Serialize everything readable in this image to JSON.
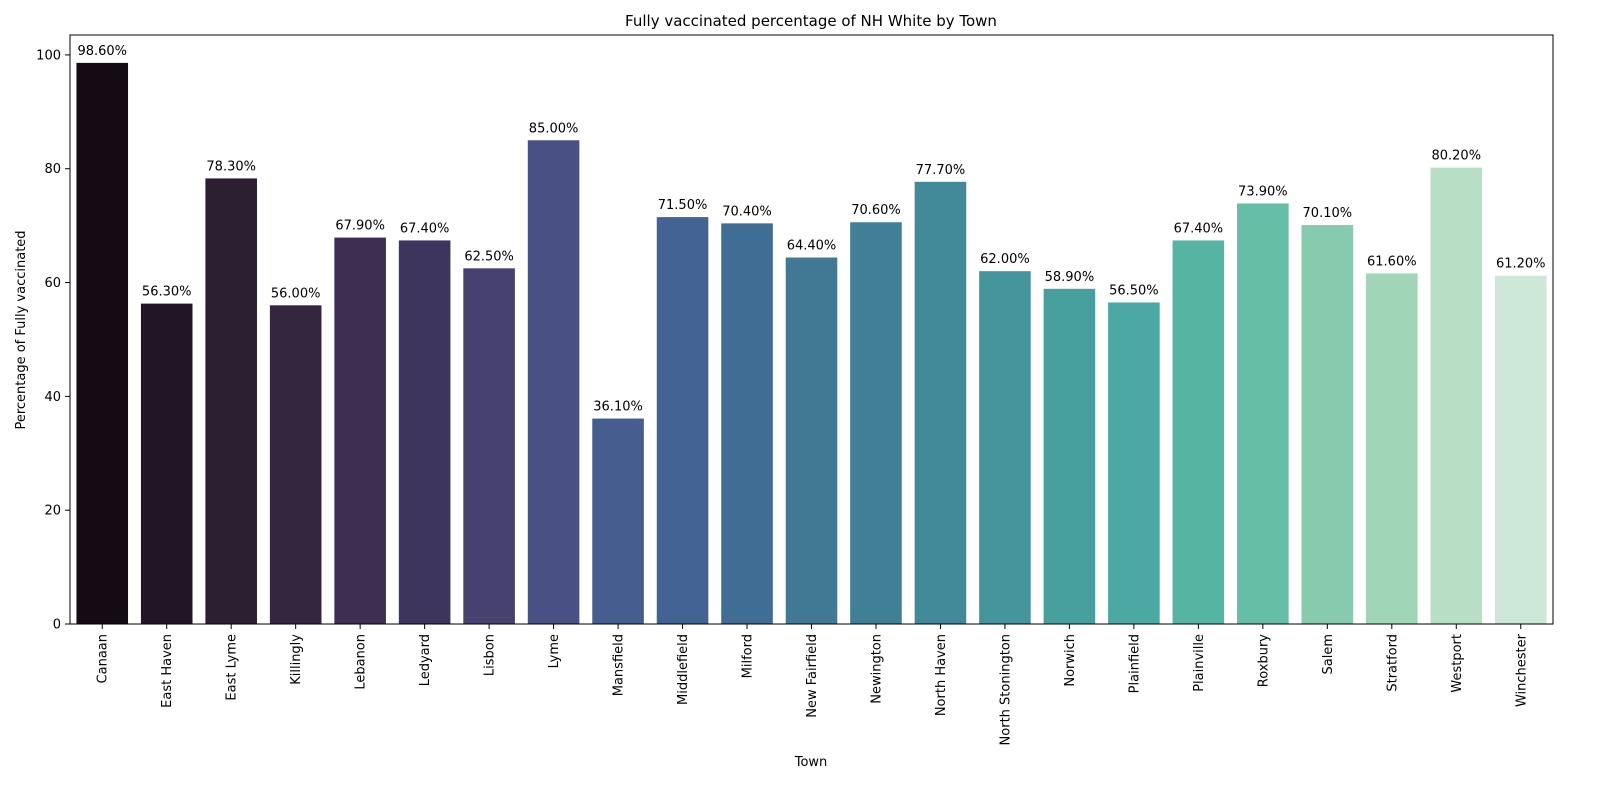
{
  "chart_data": {
    "type": "bar",
    "title": "Fully vaccinated percentage of NH White by Town",
    "xlabel": "Town",
    "ylabel": "Percentage of Fully vaccinated",
    "ylim": [
      0,
      103.5
    ],
    "yticks": [
      0,
      20,
      40,
      60,
      80,
      100
    ],
    "grid": false,
    "legend": "none",
    "categories": [
      "Canaan",
      "East Haven",
      "East Lyme",
      "Killingly",
      "Lebanon",
      "Ledyard",
      "Lisbon",
      "Lyme",
      "Mansfield",
      "Middlefield",
      "Milford",
      "New Fairfield",
      "Newington",
      "North Haven",
      "North Stonington",
      "Norwich",
      "Plainfield",
      "Plainville",
      "Roxbury",
      "Salem",
      "Stratford",
      "Westport",
      "Winchester"
    ],
    "values": [
      98.6,
      56.3,
      78.3,
      56.0,
      67.9,
      67.4,
      62.5,
      85.0,
      36.1,
      71.5,
      70.4,
      64.4,
      70.6,
      77.7,
      62.0,
      58.9,
      56.5,
      67.4,
      73.9,
      70.1,
      61.6,
      80.2,
      61.2
    ],
    "data_labels": [
      "98.60%",
      "56.30%",
      "78.30%",
      "56.00%",
      "67.90%",
      "67.40%",
      "62.50%",
      "85.00%",
      "36.10%",
      "71.50%",
      "70.40%",
      "64.40%",
      "70.60%",
      "77.70%",
      "62.00%",
      "58.90%",
      "56.50%",
      "67.40%",
      "73.90%",
      "70.10%",
      "61.60%",
      "80.20%",
      "61.20%"
    ],
    "colors": [
      "#140b14",
      "#221626",
      "#2c1f32",
      "#34263f",
      "#3c2f51",
      "#3e355f",
      "#46416f",
      "#495084",
      "#465d8f",
      "#426393",
      "#3f6d93",
      "#417894",
      "#417f97",
      "#428a99",
      "#45959c",
      "#47a09e",
      "#4ca8a2",
      "#56b4a3",
      "#67bea6",
      "#86cbad",
      "#a0d5b8",
      "#b8dfc6",
      "#cde8d8"
    ]
  }
}
